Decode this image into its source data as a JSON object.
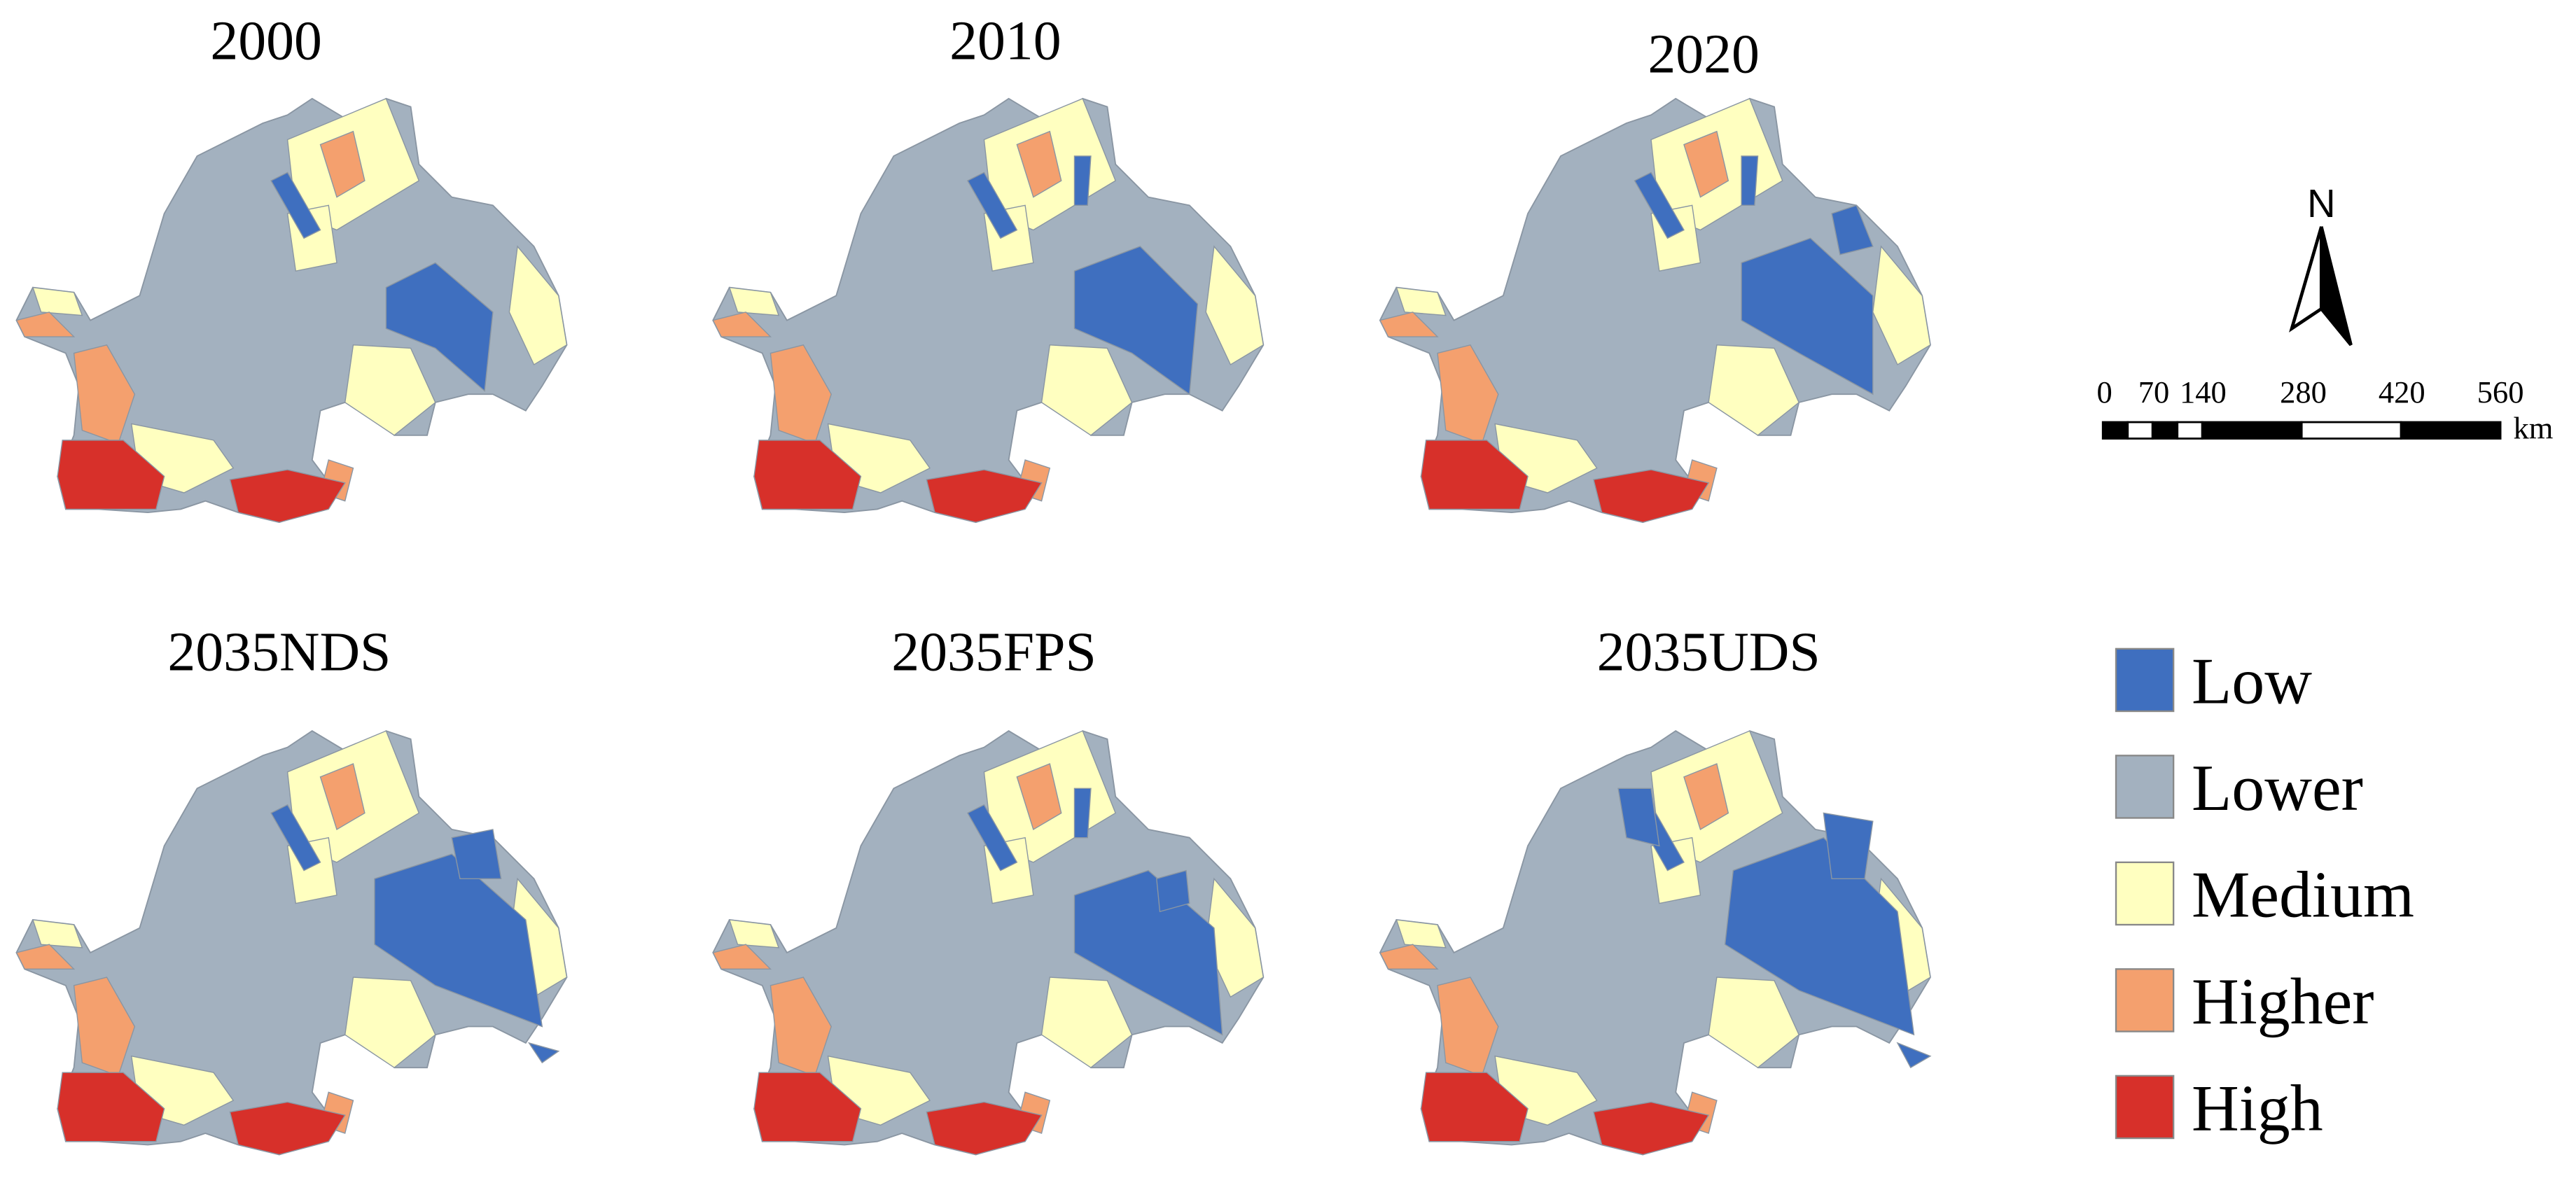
{
  "panels": [
    {
      "title": "2000"
    },
    {
      "title": "2010"
    },
    {
      "title": "2020"
    },
    {
      "title": "2035NDS"
    },
    {
      "title": "2035FPS"
    },
    {
      "title": "2035UDS"
    }
  ],
  "legend": [
    {
      "label": "Low",
      "color": "#3f6fbf"
    },
    {
      "label": "Lower",
      "color": "#a3b1bf"
    },
    {
      "label": "Medium",
      "color": "#ffffc0"
    },
    {
      "label": "Higher",
      "color": "#f4a06e"
    },
    {
      "label": "High",
      "color": "#d7302a"
    }
  ],
  "north": "N",
  "scale_bar": {
    "labels": [
      "0",
      "70",
      "140",
      "280",
      "420",
      "560"
    ],
    "unit": "km"
  }
}
